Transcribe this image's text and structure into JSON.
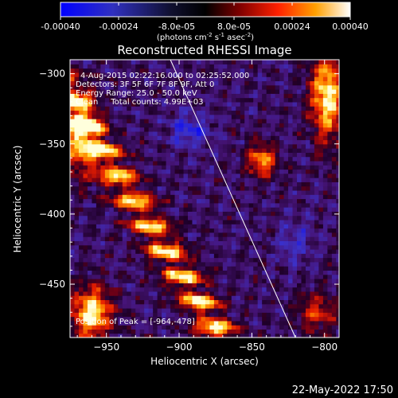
{
  "colorbar": {
    "ticks": [
      "-0.00040",
      "-0.00024",
      "-8.0e-05",
      "8.0e-05",
      "0.00024",
      "0.00040"
    ],
    "units_main": "(photons cm",
    "units_sup1": "-2",
    "units_mid1": " s",
    "units_sup2": "-1",
    "units_mid2": " asec",
    "units_sup3": "-2",
    "units_end": ")"
  },
  "plot": {
    "title": "Reconstructed RHESSI Image",
    "info_lines": [
      "4-Aug-2015 02:22:16.000 to 02:25:52.000",
      "Detectors: 3F 5F 6F 7F 8F 9F, Att 0",
      "Energy Range: 25.0 - 50.0 keV",
      "Clean     Total counts: 4.99E+03"
    ],
    "peak_label": "Position of Peak = [-964,-478]"
  },
  "footer": {
    "timestamp": "22-May-2022 17:50"
  },
  "chart_data": {
    "type": "heatmap",
    "title": "Reconstructed RHESSI Image",
    "xlabel": "Heliocentric X (arcsec)",
    "ylabel": "Heliocentric Y (arcsec)",
    "xlim": [
      -975,
      -790
    ],
    "ylim": [
      -488,
      -290
    ],
    "x_ticks": [
      -950,
      -900,
      -850,
      -800
    ],
    "y_ticks": [
      -300,
      -350,
      -400,
      -450
    ],
    "colorbar_range": [
      -0.0004,
      0.0004
    ],
    "colormap": "blue-black-red-yellow-white",
    "peak_position": [
      -964,
      -478
    ],
    "limb_line": [
      [
        -906,
        -290
      ],
      [
        -820,
        -488
      ]
    ]
  }
}
